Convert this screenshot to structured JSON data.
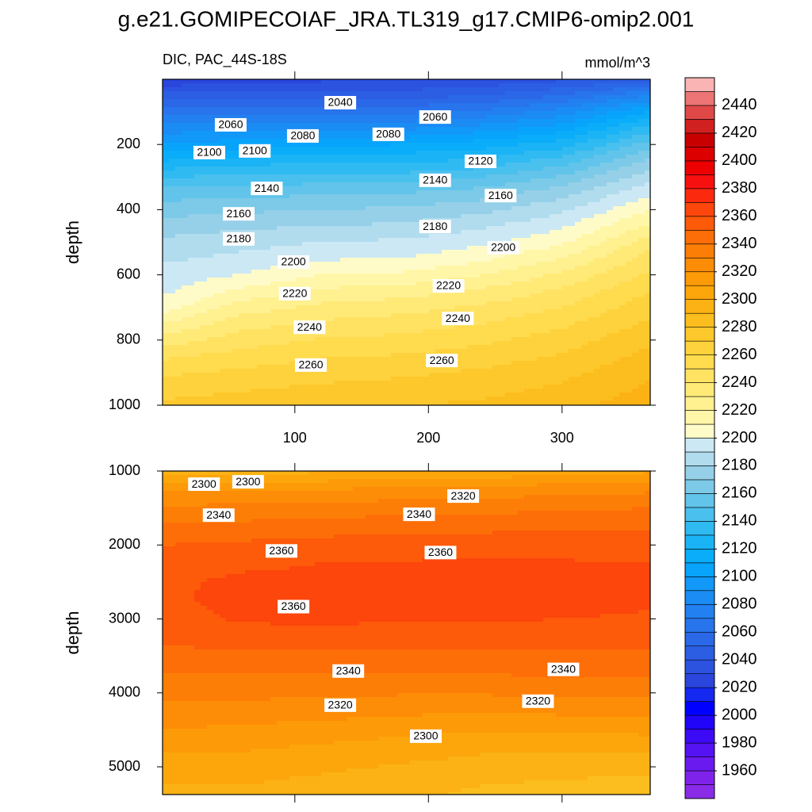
{
  "title": "g.e21.GOMIPECOIAF_JRA.TL319_g17.CMIP6-omip2.001",
  "subtitle": "DIC, PAC_44S-18S",
  "units": "mmol/m^3",
  "colorbar": {
    "lim": [
      1940,
      2460
    ],
    "ticks": [
      1960,
      1980,
      2000,
      2020,
      2040,
      2060,
      2080,
      2100,
      2120,
      2140,
      2160,
      2180,
      2200,
      2220,
      2240,
      2260,
      2280,
      2300,
      2320,
      2340,
      2360,
      2380,
      2400,
      2420,
      2440
    ],
    "colors": [
      "#8a2be8",
      "#7f23ea",
      "#6a1aee",
      "#5512f2",
      "#3c0af5",
      "#2004f8",
      "#0000ff",
      "#1428f0",
      "#2a46dc",
      "#2c52e0",
      "#2c5ee4",
      "#2a68e8",
      "#2874ec",
      "#2280f0",
      "#1a8cf4",
      "#1298f8",
      "#08a4fc",
      "#0aadfa",
      "#1ab4f6",
      "#30baf2",
      "#4ac0ee",
      "#62c4ea",
      "#7ccae8",
      "#96d0e8",
      "#b0dcee",
      "#cce8f4",
      "#fffbc8",
      "#fff6a8",
      "#fff090",
      "#ffea78",
      "#ffe262",
      "#ffdb4e",
      "#fed23c",
      "#fdc82c",
      "#fcbe1e",
      "#fcb214",
      "#fda60c",
      "#fd9a08",
      "#fd8c06",
      "#fd7e06",
      "#fd6e08",
      "#fd5a0a",
      "#fc460c",
      "#fb2a0e",
      "#f81010",
      "#ec0000",
      "#dc0000",
      "#c80000",
      "#d02020",
      "#e04848",
      "#ec7474",
      "#fab4b4"
    ]
  },
  "chart_data": [
    {
      "type": "contour",
      "ylabel": "depth",
      "y_reversed": true,
      "xtick_labels": true,
      "xlim": [
        1,
        366
      ],
      "ylim": [
        0,
        1000
      ],
      "xticks": [
        100,
        200,
        300
      ],
      "yticks": [
        200,
        400,
        600,
        800,
        1000
      ],
      "x": [
        1,
        60,
        120,
        180,
        240,
        300,
        366
      ],
      "y": [
        0,
        50,
        100,
        150,
        200,
        250,
        300,
        350,
        400,
        450,
        500,
        550,
        600,
        650,
        700,
        750,
        800,
        850,
        900,
        950,
        1000
      ],
      "z": [
        [
          2020,
          2025,
          2028,
          2030,
          2032,
          2038,
          2045
        ],
        [
          2045,
          2048,
          2045,
          2045,
          2050,
          2060,
          2080
        ],
        [
          2065,
          2068,
          2068,
          2068,
          2072,
          2085,
          2110
        ],
        [
          2085,
          2088,
          2088,
          2088,
          2095,
          2105,
          2135
        ],
        [
          2100,
          2105,
          2108,
          2110,
          2115,
          2125,
          2155
        ],
        [
          2120,
          2125,
          2128,
          2128,
          2132,
          2145,
          2172
        ],
        [
          2140,
          2142,
          2144,
          2144,
          2150,
          2162,
          2186
        ],
        [
          2155,
          2158,
          2158,
          2160,
          2165,
          2176,
          2198
        ],
        [
          2165,
          2168,
          2170,
          2172,
          2177,
          2188,
          2210
        ],
        [
          2175,
          2178,
          2180,
          2182,
          2188,
          2198,
          2222
        ],
        [
          2182,
          2186,
          2190,
          2192,
          2198,
          2208,
          2235
        ],
        [
          2188,
          2193,
          2199,
          2200,
          2208,
          2220,
          2245
        ],
        [
          2194,
          2200,
          2210,
          2212,
          2220,
          2232,
          2252
        ],
        [
          2198,
          2212,
          2222,
          2225,
          2232,
          2242,
          2260
        ],
        [
          2205,
          2225,
          2233,
          2236,
          2242,
          2250,
          2266
        ],
        [
          2220,
          2236,
          2242,
          2245,
          2250,
          2258,
          2272
        ],
        [
          2235,
          2245,
          2251,
          2253,
          2258,
          2265,
          2278
        ],
        [
          2248,
          2254,
          2259,
          2261,
          2265,
          2271,
          2283
        ],
        [
          2258,
          2262,
          2266,
          2268,
          2272,
          2277,
          2288
        ],
        [
          2266,
          2269,
          2272,
          2274,
          2277,
          2282,
          2292
        ],
        [
          2272,
          2275,
          2277,
          2279,
          2282,
          2286,
          2296
        ]
      ],
      "contour_labels": [
        {
          "x": 134,
          "y": 73,
          "value": 2040
        },
        {
          "x": 52,
          "y": 141,
          "value": 2060
        },
        {
          "x": 106,
          "y": 175,
          "value": 2080
        },
        {
          "x": 205,
          "y": 117,
          "value": 2060
        },
        {
          "x": 170,
          "y": 170,
          "value": 2080
        },
        {
          "x": 36,
          "y": 226,
          "value": 2100
        },
        {
          "x": 70,
          "y": 221,
          "value": 2100
        },
        {
          "x": 239,
          "y": 253,
          "value": 2120
        },
        {
          "x": 79,
          "y": 336,
          "value": 2140
        },
        {
          "x": 205,
          "y": 311,
          "value": 2140
        },
        {
          "x": 254,
          "y": 358,
          "value": 2160
        },
        {
          "x": 58,
          "y": 414,
          "value": 2160
        },
        {
          "x": 205,
          "y": 453,
          "value": 2180
        },
        {
          "x": 58,
          "y": 491,
          "value": 2180
        },
        {
          "x": 99,
          "y": 562,
          "value": 2200
        },
        {
          "x": 256,
          "y": 518,
          "value": 2200
        },
        {
          "x": 215,
          "y": 635,
          "value": 2220
        },
        {
          "x": 100,
          "y": 659,
          "value": 2220
        },
        {
          "x": 222,
          "y": 735,
          "value": 2240
        },
        {
          "x": 111,
          "y": 762,
          "value": 2240
        },
        {
          "x": 112,
          "y": 878,
          "value": 2260
        },
        {
          "x": 210,
          "y": 864,
          "value": 2260
        }
      ]
    },
    {
      "type": "contour",
      "ylabel": "depth",
      "y_reversed": true,
      "xtick_labels": false,
      "xlim": [
        1,
        366
      ],
      "ylim": [
        1000,
        5375
      ],
      "xticks": [
        100,
        200,
        300
      ],
      "yticks": [
        1000,
        2000,
        3000,
        4000,
        5000
      ],
      "x": [
        1,
        60,
        120,
        180,
        240,
        300,
        366
      ],
      "y": [
        1000,
        1250,
        1500,
        1750,
        2000,
        2250,
        2500,
        2750,
        3000,
        3250,
        3500,
        3750,
        4000,
        4250,
        4500,
        4750,
        5000,
        5250,
        5375
      ],
      "z": [
        [
          2295,
          2296,
          2298,
          2300,
          2302,
          2305,
          2308
        ],
        [
          2318,
          2318,
          2320,
          2322,
          2324,
          2326,
          2328
        ],
        [
          2332,
          2333,
          2334,
          2336,
          2337,
          2338,
          2340
        ],
        [
          2342,
          2343,
          2345,
          2346,
          2347,
          2348,
          2349
        ],
        [
          2350,
          2352,
          2354,
          2355,
          2356,
          2356,
          2356
        ],
        [
          2355,
          2358,
          2360,
          2361,
          2361,
          2361,
          2360
        ],
        [
          2358,
          2362,
          2363,
          2364,
          2364,
          2364,
          2362
        ],
        [
          2358,
          2363,
          2364,
          2364,
          2364,
          2363,
          2361
        ],
        [
          2356,
          2361,
          2362,
          2361,
          2361,
          2360,
          2359
        ],
        [
          2352,
          2356,
          2356,
          2355,
          2355,
          2355,
          2354
        ],
        [
          2346,
          2348,
          2348,
          2348,
          2348,
          2348,
          2348
        ],
        [
          2340,
          2340,
          2340,
          2340,
          2340,
          2341,
          2341
        ],
        [
          2333,
          2333,
          2332,
          2331,
          2331,
          2332,
          2333
        ],
        [
          2326,
          2325,
          2324,
          2322,
          2321,
          2322,
          2323
        ],
        [
          2320,
          2318,
          2316,
          2313,
          2311,
          2312,
          2313
        ],
        [
          2312,
          2311,
          2308,
          2305,
          2302,
          2302,
          2302
        ],
        [
          2305,
          2305,
          2302,
          2299,
          2296,
          2294,
          2293
        ],
        [
          2299,
          2300,
          2297,
          2294,
          2290,
          2288,
          2287
        ],
        [
          2297,
          2298,
          2295,
          2292,
          2288,
          2286,
          2285
        ]
      ],
      "contour_labels": [
        {
          "x": 32,
          "y": 1183,
          "value": 2300
        },
        {
          "x": 65,
          "y": 1151,
          "value": 2300
        },
        {
          "x": 226,
          "y": 1344,
          "value": 2320
        },
        {
          "x": 43,
          "y": 1602,
          "value": 2340
        },
        {
          "x": 193,
          "y": 1591,
          "value": 2340
        },
        {
          "x": 90,
          "y": 2086,
          "value": 2360
        },
        {
          "x": 209,
          "y": 2108,
          "value": 2360
        },
        {
          "x": 99,
          "y": 2839,
          "value": 2360
        },
        {
          "x": 140,
          "y": 3710,
          "value": 2340
        },
        {
          "x": 301,
          "y": 3688,
          "value": 2340
        },
        {
          "x": 134,
          "y": 4172,
          "value": 2320
        },
        {
          "x": 282,
          "y": 4118,
          "value": 2320
        },
        {
          "x": 198,
          "y": 4591,
          "value": 2300
        }
      ]
    }
  ]
}
